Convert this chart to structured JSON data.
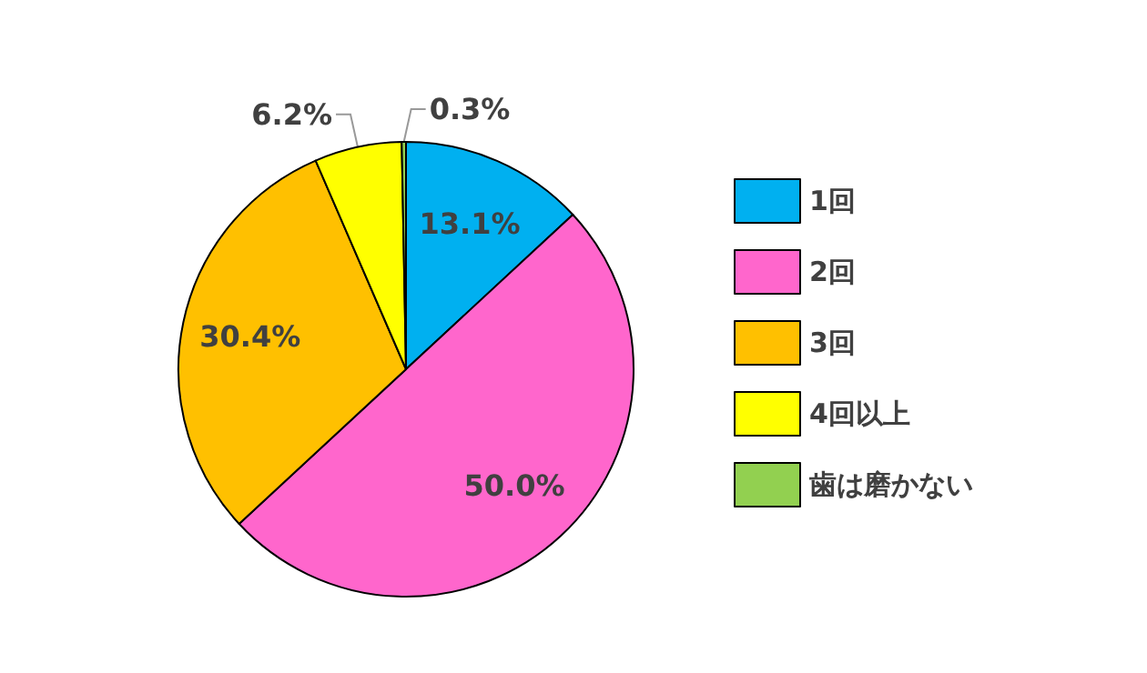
{
  "chart_data": {
    "type": "pie",
    "categories": [
      "1回",
      "2回",
      "3回",
      "4回以上",
      "歯は磨かない"
    ],
    "values": [
      13.1,
      50.0,
      30.4,
      6.2,
      0.3
    ],
    "colors": [
      "#00b0f0",
      "#ff66cc",
      "#ffc000",
      "#ffff00",
      "#92d050"
    ],
    "value_labels": [
      "13.1%",
      "50.0%",
      "30.4%",
      "6.2%",
      "0.3%"
    ],
    "legend": "right"
  }
}
